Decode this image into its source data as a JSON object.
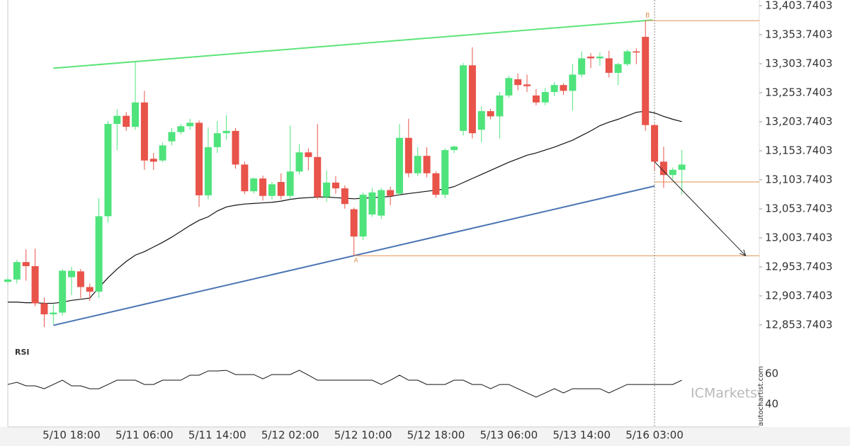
{
  "chart_data": {
    "type": "candlestick",
    "categories": [
      null,
      null,
      null,
      null,
      null,
      null,
      null,
      "5/10 18:00",
      null,
      null,
      null,
      null,
      null,
      null,
      null,
      "5/11 06:00",
      null,
      null,
      null,
      null,
      null,
      null,
      null,
      "5/11 14:00",
      null,
      null,
      null,
      null,
      null,
      null,
      null,
      "5/12 02:00",
      null,
      null,
      null,
      null,
      null,
      null,
      null,
      "5/12 10:00",
      null,
      null,
      null,
      null,
      null,
      null,
      null,
      "5/12 18:00",
      null,
      null,
      null,
      null,
      null,
      null,
      null,
      "5/13 06:00",
      null,
      null,
      null,
      null,
      null,
      null,
      null,
      "5/13 14:00",
      null,
      null,
      null,
      null,
      null,
      null,
      null,
      "5/16 03:00",
      null,
      null,
      null
    ],
    "open": [
      12928,
      12932,
      12962,
      12955,
      12891,
      12872,
      12875,
      12936,
      12946,
      12919,
      12911,
      13041,
      13200,
      13214,
      13195,
      13237,
      13140,
      13137,
      13170,
      13186,
      13196,
      13202,
      13077,
      13160,
      13184,
      13188,
      13130,
      13084,
      13106,
      13076,
      13100,
      13076,
      13118,
      13151,
      13143,
      13074,
      13099,
      13089,
      13053,
      13006,
      13044,
      13042,
      13086,
      13080,
      13176,
      13115,
      13145,
      13115,
      13078,
      13155,
      13188,
      13301,
      13190,
      13222,
      13213,
      13249,
      13277,
      13268,
      13249,
      13237,
      13255,
      13267,
      13257,
      13285,
      13316,
      13313,
      13313,
      13288,
      13303,
      13325,
      13350,
      13198,
      13135,
      13112,
      13121
    ],
    "high": [
      12935,
      12966,
      12984,
      12985,
      12901,
      12889,
      12950,
      12954,
      12950,
      12925,
      13072,
      13205,
      13225,
      13220,
      13307,
      13257,
      13150,
      13168,
      13193,
      13200,
      13209,
      13206,
      13194,
      13205,
      13215,
      13193,
      13135,
      13108,
      13111,
      13100,
      13115,
      13197,
      13165,
      13158,
      13200,
      13120,
      13110,
      13094,
      13056,
      13082,
      13090,
      13090,
      13092,
      13200,
      13209,
      13160,
      13160,
      13118,
      13158,
      13163,
      13305,
      13332,
      13230,
      13226,
      13255,
      13283,
      13287,
      13285,
      13260,
      13262,
      13272,
      13270,
      13303,
      13325,
      13322,
      13323,
      13326,
      13305,
      13328,
      13330,
      13378,
      13200,
      13161,
      13125,
      13155
    ],
    "low": [
      12925,
      12925,
      12930,
      12886,
      12850,
      12855,
      12870,
      12905,
      12900,
      12895,
      12900,
      13030,
      13155,
      13188,
      13190,
      13121,
      13121,
      13134,
      13163,
      13182,
      13190,
      13057,
      13070,
      13150,
      13173,
      13123,
      13079,
      13080,
      13068,
      13070,
      13070,
      13070,
      13113,
      13120,
      13070,
      13066,
      13080,
      13054,
      12973,
      13000,
      13040,
      13036,
      13060,
      13076,
      13108,
      13110,
      13108,
      13073,
      13072,
      13150,
      13180,
      13175,
      13168,
      13208,
      13175,
      13245,
      13258,
      13255,
      13232,
      13232,
      13248,
      13250,
      13223,
      13280,
      13296,
      13300,
      13280,
      13267,
      13300,
      13303,
      13188,
      13120,
      13090,
      13105,
      13078
    ],
    "close": [
      12932,
      12962,
      12955,
      12891,
      12872,
      12875,
      12947,
      12947,
      12919,
      12911,
      13041,
      13200,
      13214,
      13195,
      13237,
      13137,
      13135,
      13163,
      13186,
      13196,
      13202,
      13077,
      13160,
      13184,
      13188,
      13130,
      13084,
      13106,
      13076,
      13096,
      13076,
      13118,
      13151,
      13143,
      13074,
      13099,
      13089,
      13062,
      13006,
      13078,
      13082,
      13086,
      13076,
      13176,
      13115,
      13145,
      13115,
      13078,
      13155,
      13161,
      13301,
      13184,
      13222,
      13213,
      13249,
      13279,
      13267,
      13265,
      13237,
      13255,
      13267,
      13257,
      13285,
      13313,
      13313,
      13316,
      13288,
      13303,
      13325,
      13323,
      13198,
      13135,
      13112,
      13121,
      13130
    ],
    "ma": [
      12893,
      12893,
      12892,
      12892,
      12891,
      12891,
      12893,
      12896,
      12898,
      12900,
      12918,
      12935,
      12950,
      12963,
      12974,
      12980,
      12988,
      12996,
      13005,
      13015,
      13025,
      13034,
      13040,
      13050,
      13057,
      13060,
      13062,
      13063,
      13064,
      13065,
      13067,
      13070,
      13072,
      13073,
      13074,
      13074,
      13073,
      13072,
      13071,
      13072,
      13073,
      13074,
      13075,
      13078,
      13080,
      13082,
      13084,
      13086,
      13088,
      13092,
      13099,
      13106,
      13113,
      13120,
      13127,
      13134,
      13140,
      13146,
      13150,
      13155,
      13160,
      13166,
      13172,
      13180,
      13188,
      13197,
      13203,
      13208,
      13214,
      13220,
      13222,
      13219,
      13213,
      13208,
      13204
    ],
    "up_color": "#4fe37c",
    "down_color": "#e8534a",
    "ma_color": "#111111",
    "ylim": [
      12822,
      13413.5
    ],
    "yticks": [
      {
        "value": 13403.7403,
        "label": "13,403.7403"
      },
      {
        "value": 13353.7403,
        "label": "13,353.7403"
      },
      {
        "value": 13303.7403,
        "label": "13,303.7403"
      },
      {
        "value": 13253.7403,
        "label": "13,253.7403"
      },
      {
        "value": 13203.7403,
        "label": "13,203.7403"
      },
      {
        "value": 13153.7403,
        "label": "13,153.7403"
      },
      {
        "value": 13103.7403,
        "label": "13,103.7403"
      },
      {
        "value": 13053.7403,
        "label": "13,053.7403"
      },
      {
        "value": 13003.7403,
        "label": "13,003.7403"
      },
      {
        "value": 12953.7403,
        "label": "12,953.7403"
      },
      {
        "value": 12903.7403,
        "label": "12,903.7403"
      },
      {
        "value": 12853.7403,
        "label": "12,853.7403"
      }
    ],
    "trend_lines": [
      {
        "color": "#5de47a",
        "from": [
          5,
          13296
        ],
        "to": [
          70.8,
          13379
        ]
      },
      {
        "color": "#4a74b4",
        "from": [
          5,
          12853
        ],
        "to": [
          71,
          13093
        ]
      }
    ],
    "levels": [
      {
        "label": "A",
        "color": "#e0904e",
        "from": [
          38,
          12973
        ]
      },
      {
        "label": "B",
        "color": "#e0904e",
        "from": [
          70,
          13378
        ]
      },
      {
        "color": "#e0904e",
        "from": [
          71,
          13100
        ]
      }
    ],
    "forecast_arrow": {
      "from": [
        71,
        13135
      ],
      "to": [
        81,
        12973
      ]
    },
    "rsi": {
      "label": "RSI",
      "color": "#111111",
      "values": [
        53.0,
        54.4,
        52.1,
        52.1,
        50.2,
        53.0,
        55.8,
        52.1,
        52.1,
        50.2,
        50.2,
        53.0,
        55.8,
        55.8,
        55.8,
        53.0,
        53.0,
        55.8,
        55.8,
        55.8,
        59.1,
        59.1,
        61.9,
        61.9,
        62.3,
        59.5,
        59.5,
        59.5,
        56.7,
        59.5,
        59.5,
        59.5,
        62.3,
        59.1,
        55.8,
        55.8,
        55.8,
        55.8,
        55.8,
        55.8,
        55.8,
        53.0,
        55.8,
        59.1,
        55.8,
        55.8,
        53.0,
        53.0,
        53.0,
        55.8,
        55.8,
        53.0,
        53.0,
        50.2,
        53.0,
        53.0,
        50.2,
        47.4,
        44.7,
        47.4,
        50.2,
        47.4,
        50.2,
        50.2,
        50.2,
        50.2,
        47.4,
        50.2,
        53.0,
        53.0,
        53.0,
        53.0,
        53.0,
        53.0,
        55.8
      ],
      "ylim": [
        25.1,
        77.7
      ],
      "yticks": [
        40,
        60
      ]
    },
    "watermark": "autochartist.com",
    "brand": "ICMarkets"
  }
}
